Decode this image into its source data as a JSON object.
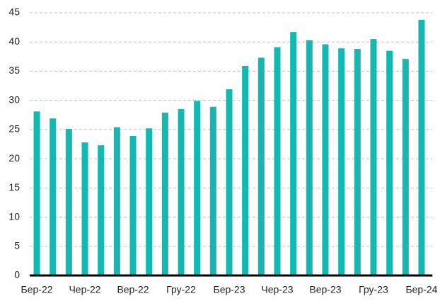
{
  "chart_data": {
    "type": "bar",
    "categories": [
      "Бер-22",
      null,
      null,
      "Чер-22",
      null,
      null,
      "Вер-22",
      null,
      null,
      "Гру-22",
      null,
      null,
      "Бер-23",
      null,
      null,
      "Чер-23",
      null,
      null,
      "Вер-23",
      null,
      null,
      "Гру-23",
      null,
      null,
      "Бер-24"
    ],
    "values": [
      28.1,
      26.9,
      25.1,
      22.8,
      22.3,
      25.4,
      23.9,
      25.2,
      27.9,
      28.5,
      29.9,
      28.9,
      31.9,
      35.9,
      37.3,
      39.1,
      41.7,
      40.3,
      39.6,
      38.9,
      38.8,
      40.5,
      38.5,
      37.1,
      43.8
    ],
    "color": "#14b8b0",
    "ylim": [
      0,
      45
    ],
    "yticks": [
      0,
      5,
      10,
      15,
      20,
      25,
      30,
      35,
      40,
      45
    ],
    "grid": true
  }
}
